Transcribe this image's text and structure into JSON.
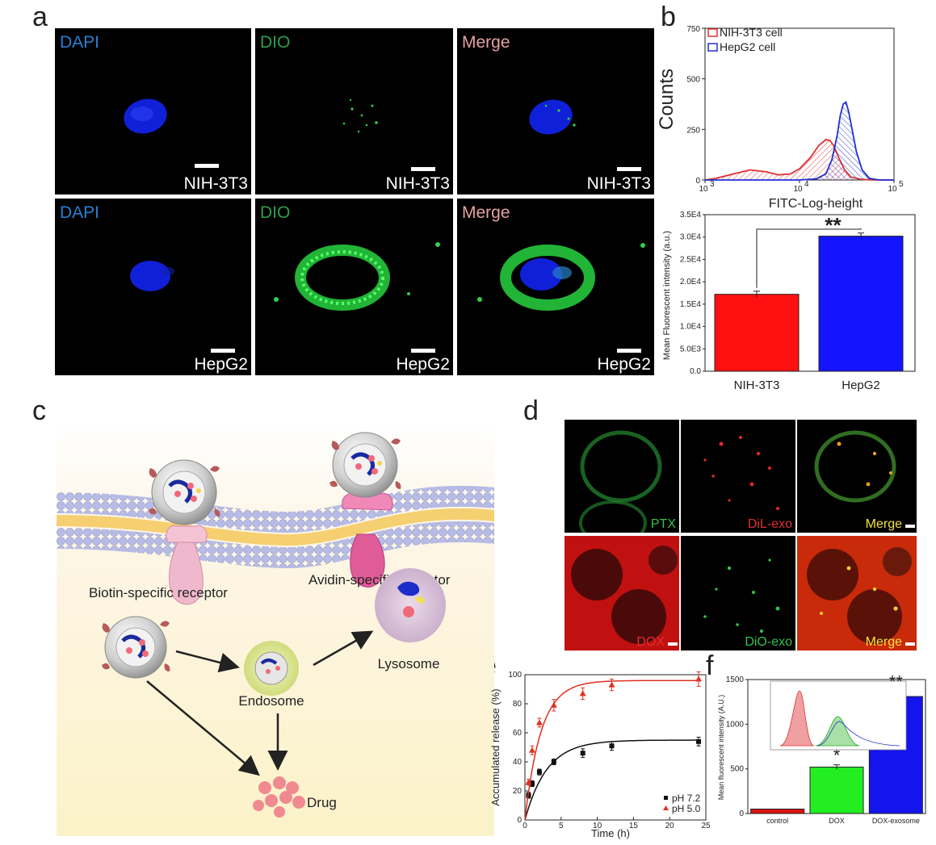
{
  "panels": {
    "a": "a",
    "b": "b",
    "c": "c",
    "d": "d",
    "e": "e",
    "f": "f"
  },
  "panel_a": {
    "rows": [
      {
        "cell": "NIH-3T3",
        "channels": [
          "DAPI",
          "DIO",
          "Merge"
        ]
      },
      {
        "cell": "HepG2",
        "channels": [
          "DAPI",
          "DIO",
          "Merge"
        ]
      }
    ],
    "channel_colors": {
      "DAPI": "#2a7fd4",
      "DIO": "#2f9e4a",
      "Merge": "#e8a0a0"
    }
  },
  "panel_c": {
    "biotin_label": "Biotin-specific receptor",
    "avidin_label": "Avidin-specific receptor",
    "lysosome_label": "Lysosome",
    "endosome_label": "Endosome",
    "drug_label": "Drug"
  },
  "panel_d": {
    "row1": [
      "PTX",
      "DiL-exo",
      "Merge"
    ],
    "row2": [
      "DOX",
      "DiO-exo",
      "Merge"
    ],
    "colors": {
      "PTX": "#36c24a",
      "DiL-exo": "#e03030",
      "DOX": "#e03030",
      "DiO-exo": "#36c24a",
      "Merge": "#f2e23a"
    }
  },
  "chart_data": [
    {
      "id": "b_top",
      "type": "area",
      "xlabel": "FITC-Log-height",
      "ylabel": "Counts",
      "xscale": "log",
      "xlim": [
        1000,
        100000
      ],
      "xticks": [
        "10",
        "10",
        "10"
      ],
      "xtick_exp": [
        "3",
        "4",
        "5"
      ],
      "ylim": [
        0,
        750
      ],
      "yticks": [
        "0",
        "250",
        "500",
        "750"
      ],
      "legend_placement": "top-left",
      "series": [
        {
          "name": "NIH-3T3 cell",
          "color": "#e03030",
          "x": [
            1000,
            1300,
            2000,
            3000,
            4500,
            6000,
            8000,
            10000,
            13000,
            16000,
            19000,
            21000,
            23000,
            26000,
            30000,
            35000,
            45000,
            60000,
            100000
          ],
          "y": [
            0,
            8,
            30,
            50,
            40,
            25,
            30,
            55,
            110,
            170,
            200,
            195,
            170,
            110,
            50,
            15,
            3,
            0,
            0
          ]
        },
        {
          "name": "HepG2 cell",
          "color": "#2030d0",
          "x": [
            1000,
            10000,
            15000,
            19000,
            22000,
            25000,
            27000,
            29000,
            31000,
            33000,
            36000,
            40000,
            46000,
            55000,
            70000,
            100000
          ],
          "y": [
            0,
            0,
            5,
            30,
            100,
            220,
            320,
            375,
            385,
            340,
            250,
            140,
            50,
            8,
            0,
            0
          ]
        }
      ]
    },
    {
      "id": "b_bottom",
      "type": "bar",
      "ylabel": "Mean Fluorescent intensity (a.u.)",
      "categories": [
        "NIH-3T3",
        "HepG2"
      ],
      "values": [
        17200,
        30200
      ],
      "errors": [
        700,
        700
      ],
      "colors": [
        "#ff1010",
        "#1414ff"
      ],
      "ylim": [
        0,
        35000
      ],
      "yticks": [
        "0.0",
        "5.0E3",
        "1.0E4",
        "1.5E4",
        "2.0E4",
        "2.5E4",
        "3.0E4",
        "3.5E4"
      ],
      "annotation": "**"
    },
    {
      "id": "e",
      "type": "scatter",
      "xlabel": "Time (h)",
      "ylabel": "Accumulated release (%)",
      "xlim": [
        0,
        25
      ],
      "ylim": [
        0,
        100
      ],
      "xticks": [
        "0",
        "5",
        "10",
        "15",
        "20",
        "25"
      ],
      "yticks": [
        "0",
        "20",
        "40",
        "60",
        "80",
        "100"
      ],
      "legend_placement": "bottom-right",
      "series": [
        {
          "name": "pH 7.2",
          "color": "#111111",
          "marker": "square",
          "x": [
            0.5,
            1,
            2,
            4,
            8,
            12,
            24
          ],
          "y": [
            17,
            25,
            33,
            40,
            46,
            51,
            54
          ],
          "err": [
            2,
            2,
            2,
            2,
            3,
            3,
            3
          ],
          "fit_plateau": 55,
          "fit_rate": 0.33
        },
        {
          "name": "pH 5.0",
          "color": "#e03020",
          "marker": "triangle",
          "x": [
            0.5,
            1,
            2,
            4,
            8,
            12,
            24
          ],
          "y": [
            26,
            48,
            67,
            79,
            87,
            93,
            97
          ],
          "err": [
            2,
            3,
            3,
            4,
            4,
            4,
            5
          ],
          "fit_plateau": 96,
          "fit_rate": 0.45
        }
      ]
    },
    {
      "id": "f",
      "type": "bar",
      "ylabel": "Mean fluorescent intensity (A.U.)",
      "categories": [
        "control",
        "DOX",
        "DOX-exosome"
      ],
      "values": [
        50,
        520,
        1310
      ],
      "errors": [
        0,
        25,
        60
      ],
      "colors": [
        "#e01010",
        "#22ee22",
        "#1414ee"
      ],
      "ylim": [
        0,
        1500
      ],
      "yticks": [
        "0",
        "500",
        "1000",
        "1500"
      ],
      "annotations": [
        "",
        "*",
        "**"
      ]
    }
  ]
}
